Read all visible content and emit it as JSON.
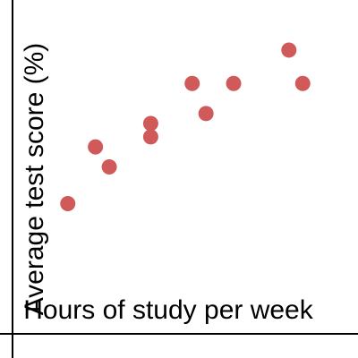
{
  "chart_data": {
    "type": "scatter",
    "x_label": "Hours of study per week",
    "y_label": "Average test score (%)",
    "color": "#d05a5a",
    "x": [
      4,
      6,
      7,
      10,
      10,
      13,
      14,
      16,
      20,
      21
    ],
    "values": [
      39,
      56,
      50,
      63,
      59,
      75,
      66,
      75,
      85,
      75
    ],
    "xlim": [
      0,
      25
    ],
    "ylim": [
      0,
      100
    ]
  }
}
